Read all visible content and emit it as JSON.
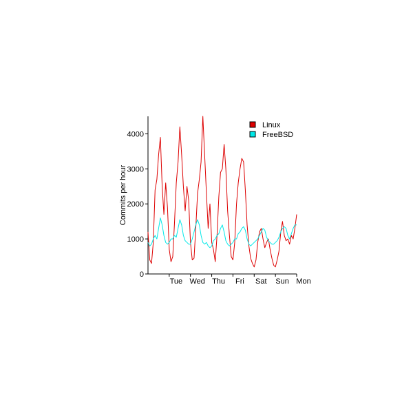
{
  "chart_data": {
    "type": "line",
    "title": "",
    "xlabel": "",
    "ylabel": "Commits per hour",
    "ylim": [
      0,
      4500
    ],
    "xlim": [
      0,
      168
    ],
    "yticks": [
      0,
      1000,
      2000,
      3000,
      4000
    ],
    "ytick_labels": [
      "0",
      "1000",
      "2000",
      "3000",
      "4000"
    ],
    "xticks": [
      24,
      48,
      72,
      96,
      120,
      144,
      168
    ],
    "xtick_labels": [
      "Tue",
      "Wed",
      "Thu",
      "Fri",
      "Sat",
      "Sun",
      "Mon"
    ],
    "grid": false,
    "legend_position": "top-right",
    "series": [
      {
        "name": "Linux",
        "color": "#dd0000",
        "x": [
          0,
          2,
          4,
          6,
          8,
          10,
          12,
          14,
          16,
          18,
          20,
          22,
          24,
          26,
          28,
          30,
          32,
          34,
          36,
          38,
          40,
          42,
          44,
          46,
          48,
          50,
          52,
          54,
          56,
          58,
          60,
          62,
          64,
          66,
          68,
          70,
          72,
          74,
          76,
          78,
          80,
          82,
          84,
          86,
          88,
          90,
          92,
          94,
          96,
          98,
          100,
          102,
          104,
          106,
          108,
          110,
          112,
          114,
          116,
          118,
          120,
          122,
          124,
          126,
          128,
          130,
          132,
          134,
          136,
          138,
          140,
          142,
          144,
          146,
          148,
          150,
          152,
          154,
          156,
          158,
          160,
          162,
          164,
          166,
          168
        ],
        "y": [
          1200,
          400,
          300,
          900,
          2400,
          2700,
          3400,
          3900,
          2500,
          1700,
          2600,
          1900,
          700,
          350,
          500,
          1500,
          2600,
          3200,
          4200,
          3400,
          2500,
          1800,
          2500,
          2100,
          900,
          400,
          450,
          1300,
          2300,
          2700,
          3200,
          4500,
          3400,
          2300,
          1300,
          2000,
          900,
          700,
          350,
          1100,
          2200,
          2900,
          3000,
          3700,
          3000,
          1800,
          1100,
          500,
          400,
          900,
          2000,
          2600,
          3000,
          3300,
          3200,
          2400,
          1400,
          800,
          450,
          300,
          200,
          400,
          900,
          1200,
          1300,
          1000,
          750,
          900,
          1000,
          700,
          450,
          250,
          200,
          400,
          650,
          1200,
          1500,
          1100,
          950,
          1000,
          850,
          1100,
          1000,
          1300,
          1700
        ]
      },
      {
        "name": "FreeBSD",
        "color": "#00e8e8",
        "x": [
          0,
          2,
          4,
          6,
          8,
          10,
          12,
          14,
          16,
          18,
          20,
          22,
          24,
          26,
          28,
          30,
          32,
          34,
          36,
          38,
          40,
          42,
          44,
          46,
          48,
          50,
          52,
          54,
          56,
          58,
          60,
          62,
          64,
          66,
          68,
          70,
          72,
          74,
          76,
          78,
          80,
          82,
          84,
          86,
          88,
          90,
          92,
          94,
          96,
          98,
          100,
          102,
          104,
          106,
          108,
          110,
          112,
          114,
          116,
          118,
          120,
          122,
          124,
          126,
          128,
          130,
          132,
          134,
          136,
          138,
          140,
          142,
          144,
          146,
          148,
          150,
          152,
          154,
          156,
          158,
          160,
          162,
          164,
          166,
          168
        ],
        "y": [
          900,
          800,
          850,
          1000,
          1100,
          1000,
          1300,
          1600,
          1400,
          1100,
          900,
          850,
          900,
          1000,
          1000,
          1100,
          1050,
          1300,
          1550,
          1400,
          1100,
          950,
          900,
          850,
          850,
          1000,
          1200,
          1400,
          1550,
          1400,
          1100,
          900,
          850,
          900,
          800,
          750,
          800,
          950,
          1000,
          1100,
          1150,
          1300,
          1400,
          1200,
          950,
          850,
          800,
          850,
          900,
          1000,
          1000,
          1150,
          1200,
          1300,
          1350,
          1250,
          1000,
          850,
          800,
          850,
          900,
          950,
          1000,
          1100,
          1200,
          1300,
          1250,
          1050,
          950,
          900,
          850,
          850,
          900,
          950,
          1050,
          1200,
          1300,
          1350,
          1300,
          1100,
          1000,
          1150,
          1300,
          1400,
          1400
        ]
      }
    ]
  }
}
